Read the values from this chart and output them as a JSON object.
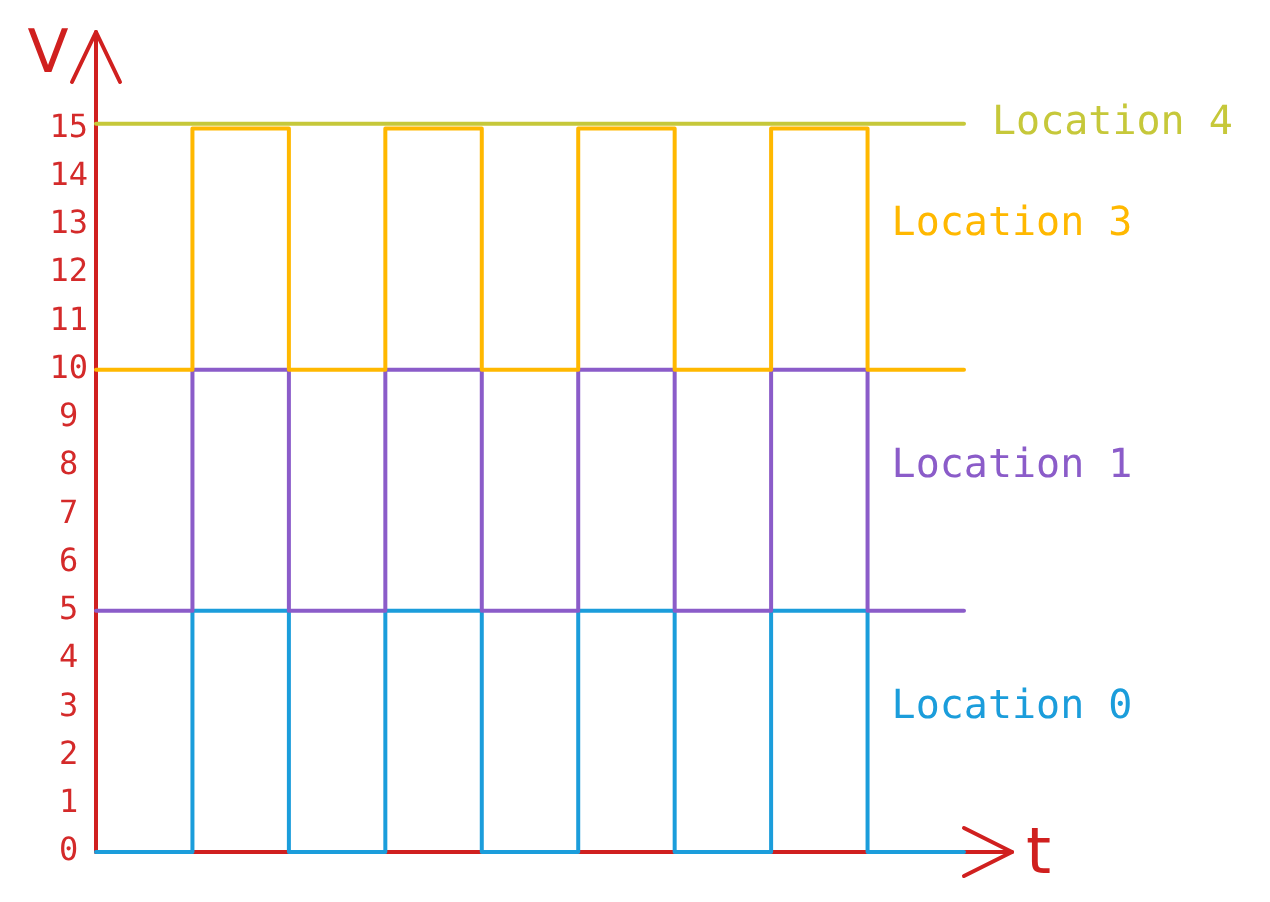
{
  "chart_data": {
    "type": "step",
    "xlabel": "t",
    "ylabel": "V",
    "categories": [
      null,
      null,
      null,
      null,
      null,
      null,
      null,
      null,
      null,
      null
    ],
    "series": [
      {
        "name": "Location 4",
        "color": "#c6c83a",
        "values": [
          15.1,
          15.1,
          15.1,
          15.1,
          15.1,
          15.1,
          15.1,
          15.1,
          15.1,
          15.1
        ]
      },
      {
        "name": "Location 3",
        "color": "#ffb800",
        "values": [
          10,
          15,
          10,
          15,
          10,
          15,
          10,
          15,
          10,
          10
        ]
      },
      {
        "name": "Location 1",
        "color": "#8b5cc9",
        "values": [
          5,
          10,
          5,
          10,
          5,
          10,
          5,
          10,
          5,
          5
        ]
      },
      {
        "name": "Location 0",
        "color": "#1b9ddb",
        "values": [
          0,
          5,
          0,
          5,
          0,
          5,
          0,
          5,
          0,
          0
        ]
      }
    ],
    "ylim": [
      0,
      17
    ],
    "yticks": [
      0,
      1,
      2,
      3,
      4,
      5,
      6,
      7,
      8,
      9,
      10,
      11,
      12,
      13,
      14,
      15
    ],
    "tick_labels": "y",
    "marker": "none",
    "line_style": "solid"
  }
}
